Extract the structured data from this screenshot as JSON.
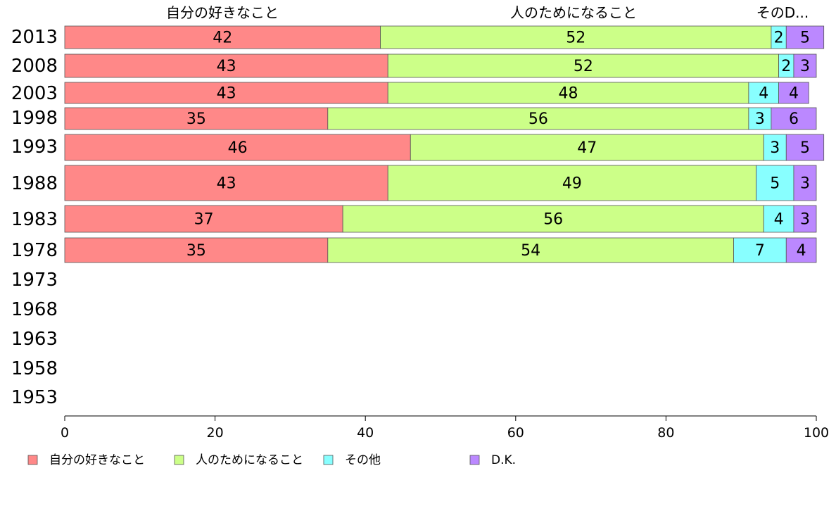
{
  "chart_data": {
    "type": "bar",
    "orientation": "horizontal",
    "stacked": true,
    "categories": [
      "2013",
      "2008",
      "2003",
      "1998",
      "1993",
      "1988",
      "1983",
      "1978",
      "1973",
      "1968",
      "1963",
      "1958",
      "1953"
    ],
    "series": [
      {
        "name": "自分の好きなこと",
        "color": "#ff8888",
        "values": [
          42,
          43,
          43,
          35,
          46,
          43,
          37,
          35,
          null,
          null,
          null,
          null,
          null
        ]
      },
      {
        "name": "人のためになること",
        "color": "#ccff88",
        "values": [
          52,
          52,
          48,
          56,
          47,
          49,
          56,
          54,
          null,
          null,
          null,
          null,
          null
        ]
      },
      {
        "name": "その他",
        "color": "#88ffff",
        "values": [
          2,
          2,
          4,
          3,
          3,
          5,
          4,
          7,
          null,
          null,
          null,
          null,
          null
        ]
      },
      {
        "name": "D.K.",
        "color": "#bb88ff",
        "values": [
          5,
          3,
          4,
          6,
          5,
          3,
          3,
          4,
          null,
          null,
          null,
          null,
          null
        ]
      }
    ],
    "top_headers": [
      "自分の好きなこと",
      "人のためになること",
      "そのD..."
    ],
    "xlim": [
      0,
      100
    ],
    "xticks": [
      "0",
      "20",
      "40",
      "60",
      "80",
      "100"
    ],
    "legend_position": "bottom",
    "grid": false
  }
}
